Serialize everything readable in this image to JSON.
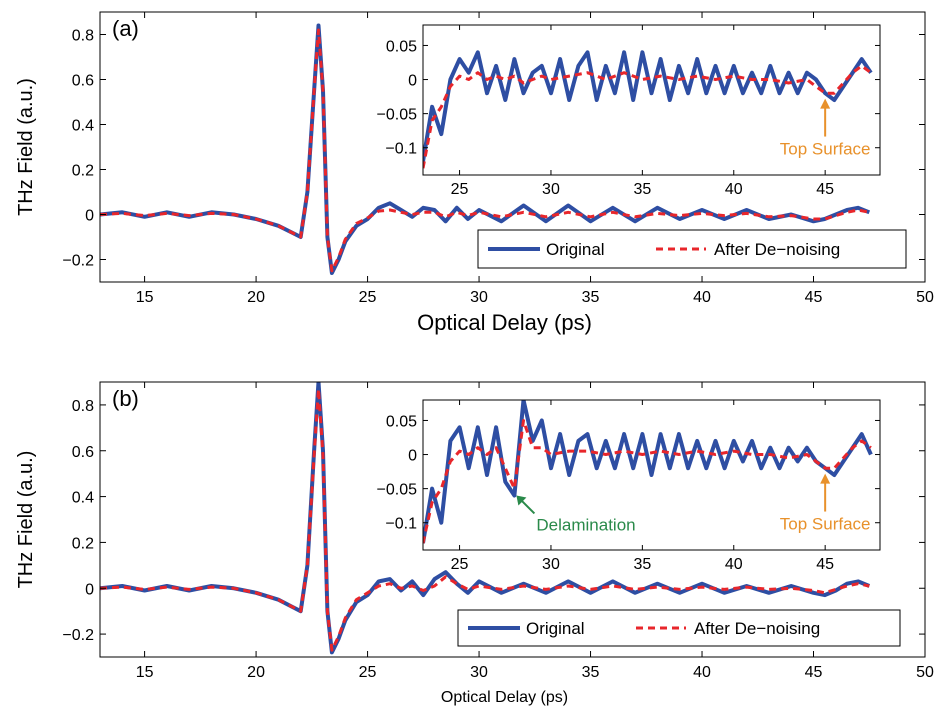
{
  "colors": {
    "original": "#2e4ea3",
    "denoised": "#e8262b",
    "top_surface": "#e8912b",
    "delamination": "#2a8a4a"
  },
  "chart_data": [
    {
      "type": "line",
      "panel_label": "(a)",
      "xlabel": "Optical Delay (ps)",
      "ylabel": "THz Field (a.u.)",
      "xlim": [
        13,
        50
      ],
      "ylim": [
        -0.3,
        0.9
      ],
      "xticks": [
        15,
        20,
        25,
        30,
        35,
        40,
        45,
        50
      ],
      "yticks": [
        -0.2,
        0,
        0.2,
        0.4,
        0.6,
        0.8
      ],
      "ytick_labels": [
        "−0.2",
        "0",
        "0.2",
        "0.4",
        "0.6",
        "0.8"
      ],
      "legend": {
        "position": "lower-right",
        "entries": [
          "Original",
          "After De−noising"
        ]
      },
      "series": [
        {
          "name": "Original",
          "style": "solid",
          "x": [
            13,
            14,
            15,
            16,
            17,
            18,
            19,
            20,
            21,
            21.6,
            22,
            22.3,
            22.6,
            22.8,
            23.0,
            23.2,
            23.4,
            23.7,
            24.0,
            24.5,
            25,
            25.5,
            26,
            26.5,
            27,
            27.5,
            28,
            28.5,
            29,
            29.5,
            30,
            31,
            32,
            33,
            34,
            35,
            36,
            37,
            38,
            39,
            40,
            41,
            42,
            43,
            44,
            45,
            45.5,
            46,
            46.5,
            47,
            47.5
          ],
          "y": [
            0,
            0.01,
            -0.01,
            0.01,
            -0.01,
            0.01,
            0,
            -0.02,
            -0.05,
            -0.08,
            -0.1,
            0.1,
            0.55,
            0.84,
            0.55,
            -0.1,
            -0.26,
            -0.2,
            -0.12,
            -0.05,
            -0.02,
            0.03,
            0.05,
            0.02,
            -0.01,
            0.03,
            0.02,
            -0.03,
            0.03,
            -0.02,
            0.02,
            -0.03,
            0.04,
            -0.03,
            0.04,
            -0.03,
            0.03,
            -0.03,
            0.03,
            -0.02,
            0.02,
            -0.02,
            0.02,
            -0.02,
            0,
            -0.03,
            -0.02,
            0,
            0.02,
            0.03,
            0.01
          ]
        },
        {
          "name": "After De−noising",
          "style": "dashed",
          "x": [
            13,
            14,
            15,
            16,
            17,
            18,
            19,
            20,
            21,
            21.6,
            22,
            22.3,
            22.6,
            22.8,
            23.0,
            23.2,
            23.4,
            23.7,
            24.0,
            24.5,
            25,
            25.5,
            26,
            26.5,
            27,
            27.5,
            28,
            28.5,
            29,
            29.5,
            30,
            31,
            32,
            33,
            34,
            35,
            36,
            37,
            38,
            39,
            40,
            41,
            42,
            43,
            44,
            45,
            45.5,
            46,
            46.5,
            47,
            47.5
          ],
          "y": [
            0,
            0.005,
            -0.005,
            0.005,
            -0.005,
            0.005,
            0,
            -0.02,
            -0.05,
            -0.08,
            -0.1,
            0.1,
            0.55,
            0.82,
            0.55,
            -0.1,
            -0.25,
            -0.19,
            -0.11,
            -0.04,
            -0.015,
            0.015,
            0.02,
            0.01,
            0,
            0.01,
            0.01,
            -0.01,
            0.01,
            -0.005,
            0.01,
            -0.01,
            0.01,
            -0.01,
            0.01,
            -0.01,
            0.01,
            -0.01,
            0.005,
            -0.005,
            0.005,
            -0.005,
            0.005,
            -0.01,
            -0.005,
            -0.02,
            -0.02,
            -0.005,
            0.01,
            0.02,
            0.01
          ]
        }
      ],
      "inset": {
        "xlim": [
          23,
          48
        ],
        "ylim": [
          -0.14,
          0.08
        ],
        "xticks": [
          25,
          30,
          35,
          40,
          45
        ],
        "yticks": [
          -0.1,
          -0.05,
          0,
          0.05
        ],
        "ytick_labels": [
          "−0.1",
          "−0.05",
          "0",
          "0.05"
        ],
        "series": [
          {
            "name": "Original",
            "style": "solid",
            "x": [
              23,
              23.5,
              24,
              24.5,
              25,
              25.5,
              26,
              26.5,
              27,
              27.5,
              28,
              28.5,
              29,
              29.5,
              30,
              30.5,
              31,
              31.5,
              32,
              32.5,
              33,
              33.5,
              34,
              34.5,
              35,
              35.5,
              36,
              36.5,
              37,
              37.5,
              38,
              38.5,
              39,
              39.5,
              40,
              40.5,
              41,
              41.5,
              42,
              42.5,
              43,
              43.5,
              44,
              44.5,
              45,
              45.5,
              46,
              46.5,
              47,
              47.5
            ],
            "y": [
              -0.12,
              -0.04,
              -0.08,
              0,
              0.03,
              0.01,
              0.04,
              -0.02,
              0.02,
              -0.03,
              0.03,
              -0.02,
              0.01,
              0.02,
              -0.02,
              0.03,
              -0.03,
              0.02,
              0.04,
              -0.03,
              0.02,
              -0.02,
              0.04,
              -0.03,
              0.04,
              -0.02,
              0.03,
              -0.03,
              0.02,
              -0.02,
              0.03,
              -0.02,
              0.02,
              -0.02,
              0.02,
              -0.02,
              0.01,
              -0.02,
              0.02,
              -0.02,
              0.01,
              -0.02,
              0.01,
              0,
              -0.02,
              -0.03,
              -0.01,
              0.01,
              0.03,
              0.01
            ]
          },
          {
            "name": "After De−noising",
            "style": "dashed",
            "x": [
              23,
              23.5,
              24,
              24.5,
              25,
              25.5,
              26,
              26.5,
              27,
              27.5,
              28,
              28.5,
              29,
              29.5,
              30,
              31,
              32,
              33,
              34,
              35,
              36,
              37,
              38,
              39,
              40,
              41,
              42,
              43,
              44,
              44.5,
              45,
              45.5,
              46,
              46.5,
              47,
              47.5
            ],
            "y": [
              -0.13,
              -0.06,
              -0.04,
              -0.01,
              0.005,
              0,
              0.01,
              0,
              0.005,
              0,
              0.005,
              -0.005,
              0,
              0.005,
              0,
              0.005,
              0.01,
              0,
              0.01,
              0,
              0.005,
              0,
              0.005,
              0,
              0.005,
              0,
              0,
              -0.005,
              0,
              -0.01,
              -0.02,
              -0.02,
              -0.005,
              0.01,
              0.02,
              0.01
            ]
          }
        ],
        "annotations": [
          {
            "text": "Top Surface",
            "x": 45,
            "y": -0.025,
            "color_key": "top_surface",
            "label_y": -0.11
          }
        ]
      }
    },
    {
      "type": "line",
      "panel_label": "(b)",
      "xlabel": "Optical Delay (ps)",
      "ylabel": "THz Field (a.u.)",
      "xlim": [
        13,
        50
      ],
      "ylim": [
        -0.3,
        0.9
      ],
      "xticks": [
        15,
        20,
        25,
        30,
        35,
        40,
        45,
        50
      ],
      "yticks": [
        -0.2,
        0,
        0.2,
        0.4,
        0.6,
        0.8
      ],
      "ytick_labels": [
        "−0.2",
        "0",
        "0.2",
        "0.4",
        "0.6",
        "0.8"
      ],
      "legend": {
        "position": "lower-right",
        "entries": [
          "Original",
          "After De−noising"
        ]
      },
      "series": [
        {
          "name": "Original",
          "style": "solid",
          "x": [
            13,
            14,
            15,
            16,
            17,
            18,
            19,
            20,
            21,
            21.6,
            22,
            22.3,
            22.6,
            22.8,
            23.0,
            23.2,
            23.4,
            23.7,
            24.0,
            24.5,
            25,
            25.5,
            26,
            26.5,
            27,
            27.5,
            28,
            28.5,
            29,
            29.5,
            30,
            31,
            32,
            33,
            34,
            35,
            36,
            37,
            38,
            39,
            40,
            41,
            42,
            43,
            44,
            45,
            45.5,
            46,
            46.5,
            47,
            47.5
          ],
          "y": [
            0,
            0.01,
            -0.01,
            0.01,
            -0.01,
            0.01,
            0,
            -0.02,
            -0.05,
            -0.08,
            -0.1,
            0.1,
            0.6,
            0.9,
            0.6,
            -0.1,
            -0.28,
            -0.22,
            -0.14,
            -0.06,
            -0.03,
            0.03,
            0.04,
            -0.01,
            0.03,
            -0.03,
            0.04,
            0.07,
            0.02,
            -0.02,
            0.03,
            -0.02,
            0.02,
            -0.02,
            0.03,
            -0.02,
            0.03,
            -0.02,
            0.02,
            -0.02,
            0.02,
            -0.02,
            0.01,
            -0.02,
            0.01,
            -0.02,
            -0.03,
            -0.01,
            0.02,
            0.03,
            0.01
          ]
        },
        {
          "name": "After De−noising",
          "style": "dashed",
          "x": [
            13,
            14,
            15,
            16,
            17,
            18,
            19,
            20,
            21,
            21.6,
            22,
            22.3,
            22.6,
            22.8,
            23.0,
            23.2,
            23.4,
            23.7,
            24.0,
            24.5,
            25,
            25.5,
            26,
            26.5,
            27,
            27.5,
            28,
            28.5,
            29,
            29.5,
            30,
            31,
            32,
            33,
            34,
            35,
            36,
            37,
            38,
            39,
            40,
            41,
            42,
            43,
            44,
            45,
            45.5,
            46,
            46.5,
            47,
            47.5
          ],
          "y": [
            0,
            0.005,
            -0.005,
            0.005,
            -0.005,
            0.005,
            0,
            -0.02,
            -0.05,
            -0.08,
            -0.1,
            0.1,
            0.58,
            0.87,
            0.58,
            -0.1,
            -0.27,
            -0.21,
            -0.13,
            -0.05,
            -0.02,
            0.01,
            0.02,
            0,
            0.01,
            -0.01,
            0.01,
            0.05,
            0.02,
            -0.005,
            0.01,
            -0.005,
            0.01,
            -0.005,
            0.01,
            -0.005,
            0.01,
            -0.005,
            0.005,
            -0.005,
            0.005,
            -0.005,
            0.005,
            -0.005,
            0,
            -0.01,
            -0.02,
            -0.005,
            0.01,
            0.02,
            0.01
          ]
        }
      ],
      "inset": {
        "xlim": [
          23,
          48
        ],
        "ylim": [
          -0.14,
          0.08
        ],
        "xticks": [
          25,
          30,
          35,
          40,
          45
        ],
        "yticks": [
          -0.1,
          -0.05,
          0,
          0.05
        ],
        "ytick_labels": [
          "−0.1",
          "−0.05",
          "0",
          "0.05"
        ],
        "series": [
          {
            "name": "Original",
            "style": "solid",
            "x": [
              23,
              23.5,
              24,
              24.5,
              25,
              25.5,
              26,
              26.5,
              27,
              27.5,
              28,
              28.5,
              29,
              29.5,
              30,
              30.5,
              31,
              31.5,
              32,
              32.5,
              33,
              33.5,
              34,
              34.5,
              35,
              35.5,
              36,
              36.5,
              37,
              37.5,
              38,
              38.5,
              39,
              39.5,
              40,
              40.5,
              41,
              41.5,
              42,
              42.5,
              43,
              43.5,
              44,
              44.5,
              45,
              45.5,
              46,
              46.5,
              47,
              47.5
            ],
            "y": [
              -0.13,
              -0.05,
              -0.1,
              0.02,
              0.04,
              -0.02,
              0.04,
              -0.03,
              0.04,
              -0.04,
              -0.06,
              0.08,
              0.02,
              0.05,
              -0.02,
              0.03,
              -0.03,
              0.02,
              0.03,
              -0.02,
              0.02,
              -0.02,
              0.03,
              -0.02,
              0.03,
              -0.03,
              0.03,
              -0.02,
              0.03,
              -0.02,
              0.02,
              -0.02,
              0.02,
              -0.02,
              0.02,
              -0.01,
              0.02,
              -0.02,
              0.01,
              -0.02,
              0.01,
              -0.01,
              0.01,
              -0.01,
              -0.02,
              -0.03,
              -0.01,
              0.01,
              0.03,
              0
            ]
          },
          {
            "name": "After De−noising",
            "style": "dashed",
            "x": [
              23,
              23.5,
              24,
              24.5,
              25,
              25.5,
              26,
              26.5,
              27,
              27.5,
              28,
              28.5,
              29,
              29.5,
              30,
              31,
              32,
              33,
              34,
              35,
              36,
              37,
              38,
              39,
              40,
              41,
              42,
              43,
              44,
              44.5,
              45,
              45.5,
              46,
              46.5,
              47,
              47.5
            ],
            "y": [
              -0.13,
              -0.07,
              -0.05,
              -0.01,
              0.005,
              0,
              0.01,
              0,
              0.01,
              -0.02,
              -0.05,
              0.05,
              0.01,
              0.01,
              0,
              0.005,
              0.005,
              0,
              0.005,
              0,
              0.005,
              0,
              0.005,
              0,
              0.005,
              0,
              0,
              -0.005,
              0,
              -0.01,
              -0.02,
              -0.02,
              -0.005,
              0.01,
              0.02,
              0.01
            ]
          }
        ],
        "annotations": [
          {
            "text": "Delamination",
            "x": 28,
            "y": -0.06,
            "color_key": "delamination",
            "label_y": -0.1
          },
          {
            "text": "Top Surface",
            "x": 45,
            "y": -0.025,
            "color_key": "top_surface",
            "label_y": -0.11
          }
        ]
      }
    }
  ]
}
